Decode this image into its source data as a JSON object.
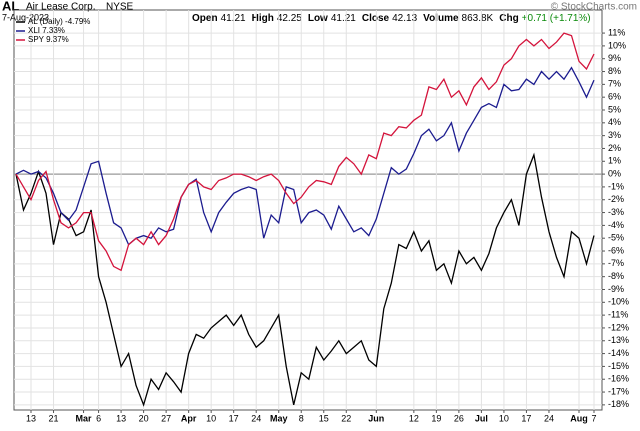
{
  "header": {
    "symbol": "AL",
    "name": "Air Lease Corp.",
    "exchange": "NYSE",
    "date": "7-Aug-2023",
    "quote": [
      {
        "label": "Open",
        "value": "41.21"
      },
      {
        "label": "High",
        "value": "42.25"
      },
      {
        "label": "Low",
        "value": "41.21"
      },
      {
        "label": "Close",
        "value": "42.13"
      },
      {
        "label": "Volume",
        "value": "863.8K"
      },
      {
        "label": "Chg",
        "value": "+0.71 (+1.71%)"
      }
    ],
    "copyright": "© StockCharts.com"
  },
  "chart_data": {
    "type": "line",
    "grid": true,
    "legend": "top-left",
    "categories": [
      null,
      null,
      "13",
      null,
      null,
      "21",
      null,
      null,
      null,
      "Mar",
      null,
      "6",
      null,
      null,
      "13",
      null,
      null,
      "20",
      null,
      null,
      "27",
      null,
      null,
      "Apr",
      null,
      null,
      "10",
      null,
      null,
      "17",
      null,
      null,
      "24",
      null,
      null,
      "May",
      null,
      null,
      "8",
      null,
      null,
      "15",
      null,
      null,
      "22",
      null,
      null,
      null,
      "Jun",
      null,
      null,
      null,
      null,
      "12",
      null,
      null,
      "19",
      null,
      null,
      "26",
      null,
      null,
      "Jul",
      null,
      null,
      "10",
      null,
      null,
      "17",
      null,
      null,
      "24",
      null,
      null,
      null,
      "Aug",
      null,
      "7"
    ],
    "ylim": [
      -18.4,
      12.8
    ],
    "yticks": [
      {
        "value": 11,
        "label": "11%"
      },
      {
        "value": 10,
        "label": "10%"
      },
      {
        "value": 9,
        "label": "9%"
      },
      {
        "value": 8,
        "label": "8%"
      },
      {
        "value": 7,
        "label": "7%"
      },
      {
        "value": 6,
        "label": "6%"
      },
      {
        "value": 5,
        "label": "5%"
      },
      {
        "value": 4,
        "label": "4%"
      },
      {
        "value": 3,
        "label": "3%"
      },
      {
        "value": 2,
        "label": "2%"
      },
      {
        "value": 1,
        "label": "1%"
      },
      {
        "value": 0,
        "label": "0%"
      },
      {
        "value": -1,
        "label": "-1%"
      },
      {
        "value": -2,
        "label": "-2%"
      },
      {
        "value": -3,
        "label": "-3%"
      },
      {
        "value": -4,
        "label": "-4%"
      },
      {
        "value": -5,
        "label": "-5%"
      },
      {
        "value": -6,
        "label": "-6%"
      },
      {
        "value": -7,
        "label": "-7%"
      },
      {
        "value": -8,
        "label": "-8%"
      },
      {
        "value": -9,
        "label": "-9%"
      },
      {
        "value": -10,
        "label": "-10%"
      },
      {
        "value": -11,
        "label": "-11%"
      },
      {
        "value": -12,
        "label": "-12%"
      },
      {
        "value": -13,
        "label": "-13%"
      },
      {
        "value": -14,
        "label": "-14%"
      },
      {
        "value": -15,
        "label": "-15%"
      },
      {
        "value": -16,
        "label": "-16%"
      },
      {
        "value": -17,
        "label": "-17%"
      },
      {
        "value": -18,
        "label": "-18%"
      }
    ],
    "series": [
      {
        "name": "AL (Daily) -4.79%",
        "color": "#000000",
        "values": [
          0,
          -2.8,
          -1.5,
          0.2,
          -1.5,
          -5.5,
          -3,
          -3.5,
          -4.8,
          -4.5,
          -2.8,
          -8,
          -10,
          -12.5,
          -15,
          -14,
          -16.5,
          -18,
          -16,
          -16.8,
          -15.5,
          -16.2,
          -17,
          -14,
          -12.5,
          -12.8,
          -12,
          -11.5,
          -11,
          -11.8,
          -11,
          -12.5,
          -13.5,
          -13,
          -12,
          -11,
          -15,
          -18,
          -15.5,
          -16,
          -13.5,
          -14.5,
          -13.8,
          -13,
          -14,
          -13.5,
          -13,
          -14.5,
          -15,
          -10.5,
          -8.5,
          -5.5,
          -5.8,
          -4.5,
          -6,
          -5.2,
          -7.5,
          -7,
          -8.5,
          -6,
          -7,
          -6.5,
          -7.5,
          -6.2,
          -4.2,
          -3,
          -2,
          -4,
          0,
          1.5,
          -1.8,
          -4.5,
          -6.5,
          -8,
          -4.5,
          -5,
          -7,
          -4.79
        ]
      },
      {
        "name": "XLI 7.33%",
        "color": "#1c1c8f",
        "values": [
          0,
          0.3,
          0,
          0.2,
          -0.3,
          -1.5,
          -3,
          -3.6,
          -2.8,
          -1,
          0.8,
          1,
          -1.5,
          -3.8,
          -4.2,
          -5.5,
          -5,
          -4.8,
          -5,
          -4.2,
          -4.5,
          -4.3,
          -1.8,
          -0.8,
          -0.4,
          -3,
          -4.5,
          -3,
          -2.2,
          -1.5,
          -1.2,
          -1,
          -1.2,
          -5,
          -3.2,
          -3.8,
          -1,
          -1.2,
          -3.8,
          -3,
          -2.8,
          -3.2,
          -4.3,
          -2.5,
          -3.5,
          -4.5,
          -4.2,
          -4.8,
          -3.5,
          -1.5,
          0.5,
          0,
          0.4,
          1.6,
          3,
          3.5,
          2.6,
          3,
          4,
          1.8,
          3.2,
          4.2,
          5.2,
          5.5,
          5.2,
          7,
          6.5,
          6.6,
          7.4,
          7,
          8,
          7.4,
          8,
          7.4,
          8.3,
          7.2,
          6,
          7.33
        ]
      },
      {
        "name": "SPY 9.37%",
        "color": "#d4143c",
        "values": [
          0,
          -1,
          -2,
          -0.5,
          0.2,
          -2,
          -3.8,
          -4.2,
          -3.8,
          -3,
          -3,
          -5.2,
          -6,
          -7.2,
          -7.5,
          -5.5,
          -5,
          -5.5,
          -4.5,
          -5.5,
          -4.8,
          -3.5,
          -1.8,
          -0.8,
          -0.5,
          -1,
          -1.2,
          -0.5,
          -0.3,
          0,
          0,
          -0.2,
          -0.5,
          -0.2,
          0,
          -0.5,
          -1.5,
          -2.3,
          -1.8,
          -1,
          -0.5,
          -0.6,
          -0.8,
          0.6,
          1.3,
          0.8,
          0,
          1.5,
          1.2,
          3.2,
          3,
          3.7,
          3.6,
          4.2,
          4.6,
          6.8,
          6.6,
          7.4,
          6,
          6.5,
          5.4,
          6.8,
          7.5,
          6.6,
          7.2,
          8.5,
          9,
          10,
          10.5,
          10,
          10.5,
          9.8,
          10.3,
          11,
          10.8,
          8.8,
          8.2,
          9.37
        ]
      }
    ]
  }
}
